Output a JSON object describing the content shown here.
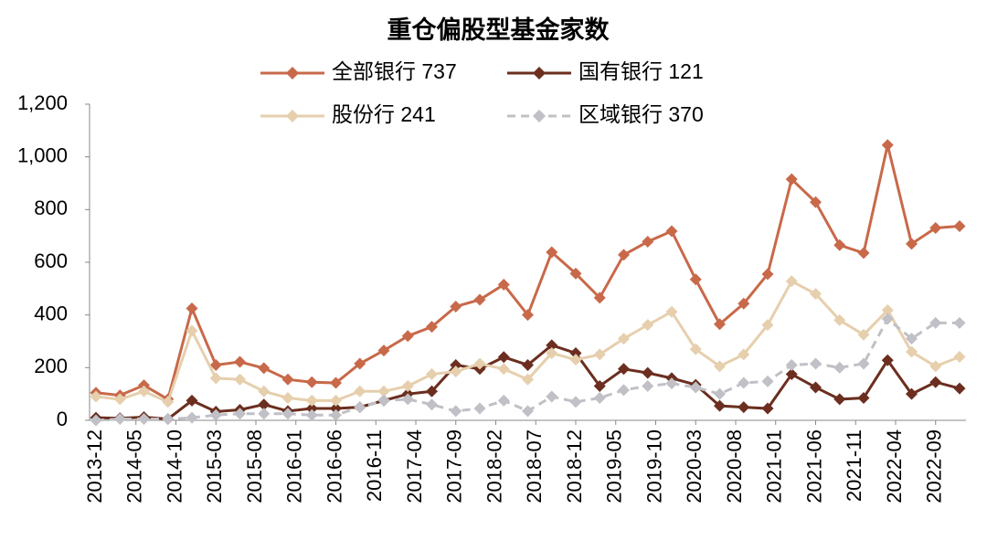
{
  "chart_data": {
    "type": "line",
    "title": "重仓偏股型基金家数",
    "x": [
      "2013-12",
      "2014-03",
      "2014-06",
      "2014-09",
      "2014-12",
      "2015-03",
      "2015-06",
      "2015-09",
      "2015-12",
      "2016-03",
      "2016-06",
      "2016-09",
      "2016-12",
      "2017-03",
      "2017-06",
      "2017-09",
      "2017-12",
      "2018-03",
      "2018-06",
      "2018-09",
      "2018-12",
      "2019-03",
      "2019-06",
      "2019-09",
      "2019-12",
      "2020-03",
      "2020-06",
      "2020-09",
      "2020-12",
      "2021-03",
      "2021-06",
      "2021-09",
      "2021-12",
      "2022-03",
      "2022-06",
      "2022-09",
      "2022-12"
    ],
    "xticks": [
      "2013-12",
      "2014-05",
      "2014-10",
      "2015-03",
      "2015-08",
      "2016-01",
      "2016-06",
      "2016-11",
      "2017-04",
      "2017-09",
      "2018-02",
      "2018-07",
      "2018-12",
      "2019-05",
      "2019-10",
      "2020-03",
      "2020-08",
      "2021-01",
      "2021-06",
      "2021-11",
      "2022-04",
      "2022-09"
    ],
    "ylim": [
      0,
      1200
    ],
    "yticks": [
      0,
      200,
      400,
      600,
      800,
      {
        "value": 1000,
        "label": "1,000"
      },
      {
        "value": 1200,
        "label": "1,200"
      }
    ],
    "series": [
      {
        "name": "全部银行  737",
        "color": "#c8694a",
        "line_style": "solid",
        "values": [
          105,
          95,
          133,
          80,
          425,
          210,
          222,
          198,
          155,
          145,
          142,
          215,
          265,
          320,
          355,
          432,
          458,
          515,
          400,
          638,
          557,
          465,
          628,
          678,
          718,
          535,
          365,
          443,
          555,
          915,
          828,
          665,
          635,
          1045,
          670,
          730,
          737
        ]
      },
      {
        "name": "国有银行 121",
        "color": "#6b2e1f",
        "line_style": "solid",
        "values": [
          10,
          8,
          12,
          5,
          75,
          33,
          40,
          60,
          35,
          45,
          45,
          50,
          75,
          100,
          110,
          210,
          195,
          240,
          210,
          285,
          255,
          130,
          195,
          180,
          160,
          135,
          55,
          50,
          45,
          175,
          125,
          80,
          85,
          228,
          100,
          145,
          121
        ]
      },
      {
        "name": "股份行  241",
        "color": "#e6cfad",
        "line_style": "solid",
        "values": [
          90,
          80,
          110,
          70,
          340,
          160,
          155,
          110,
          85,
          75,
          75,
          110,
          110,
          130,
          175,
          185,
          215,
          195,
          155,
          255,
          230,
          250,
          310,
          362,
          412,
          270,
          205,
          250,
          362,
          528,
          480,
          380,
          325,
          418,
          260,
          205,
          241
        ]
      },
      {
        "name": "区域银行 370",
        "color": "#c0c0c6",
        "line_style": "dashed",
        "values": [
          0,
          5,
          5,
          5,
          10,
          20,
          25,
          25,
          25,
          20,
          20,
          50,
          75,
          80,
          60,
          35,
          45,
          75,
          35,
          90,
          70,
          85,
          115,
          130,
          140,
          125,
          100,
          142,
          148,
          210,
          215,
          200,
          215,
          385,
          310,
          370,
          370
        ]
      }
    ]
  }
}
